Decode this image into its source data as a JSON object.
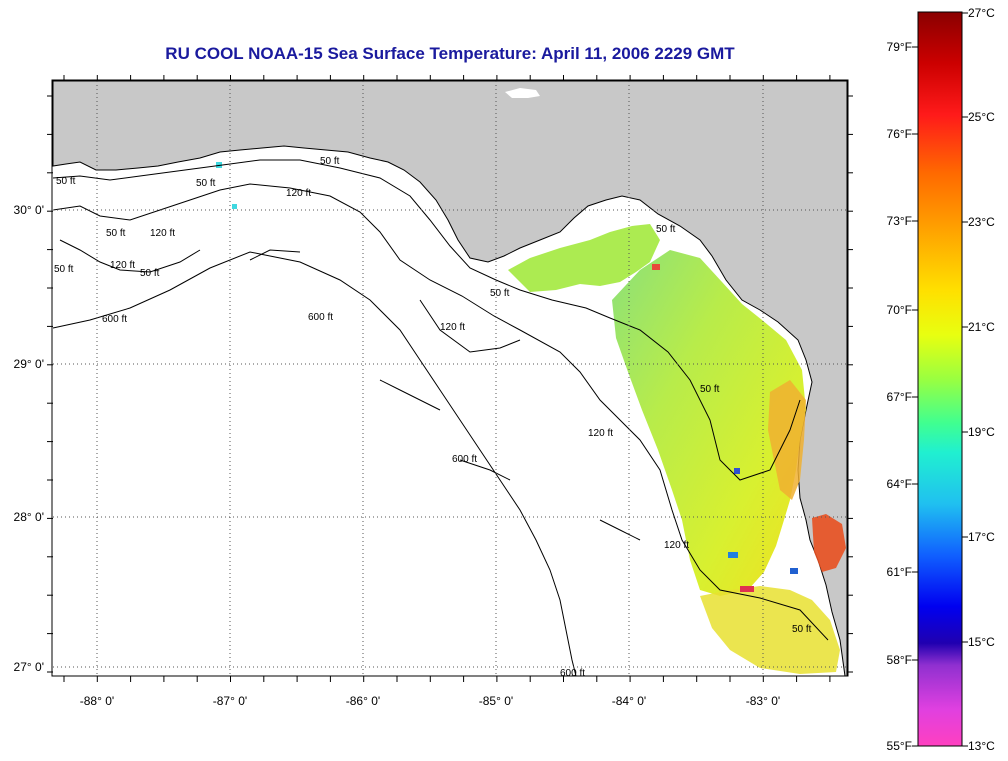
{
  "title": "RU COOL  NOAA-15  Sea Surface Temperature:  April 11, 2006 2229 GMT",
  "colors": {
    "land": "#c8c8c8",
    "water": "#ffffff",
    "grid": "#555555"
  },
  "axes": {
    "lon_ticks": [
      "-88° 0'",
      "-87° 0'",
      "-86° 0'",
      "-85° 0'",
      "-84° 0'",
      "-83° 0'"
    ],
    "lat_ticks": [
      "30° 0'",
      "29° 0'",
      "28° 0'",
      "27° 0'"
    ]
  },
  "contours": [
    {
      "label": "50 ft",
      "text": "50 ft"
    },
    {
      "label": "120 ft",
      "text": "120 ft"
    },
    {
      "label": "600 ft",
      "text": "600 ft"
    }
  ],
  "contour_labels": {
    "c1": "50 ft",
    "c2": "50 ft",
    "c3": "120 ft",
    "c4": "600 ft",
    "c5": "600 ft",
    "c6": "50 ft",
    "c7": "120 ft",
    "c8": "50 ft",
    "c9": "120 ft",
    "c10": "50 ft",
    "c11": "600 ft",
    "c12": "120 ft",
    "c13": "50 ft",
    "c14": "600 ft",
    "c15": "50 ft",
    "c16": "120 ft",
    "c17": "50 ft",
    "c18": "50 ft",
    "c19": "120 ft",
    "c20": "50 ft"
  },
  "legend": {
    "fahrenheit": [
      "79°F",
      "76°F",
      "73°F",
      "70°F",
      "67°F",
      "64°F",
      "61°F",
      "58°F",
      "55°F"
    ],
    "celsius": [
      "27°C",
      "25°C",
      "23°C",
      "21°C",
      "19°C",
      "17°C",
      "15°C",
      "13°C"
    ]
  }
}
